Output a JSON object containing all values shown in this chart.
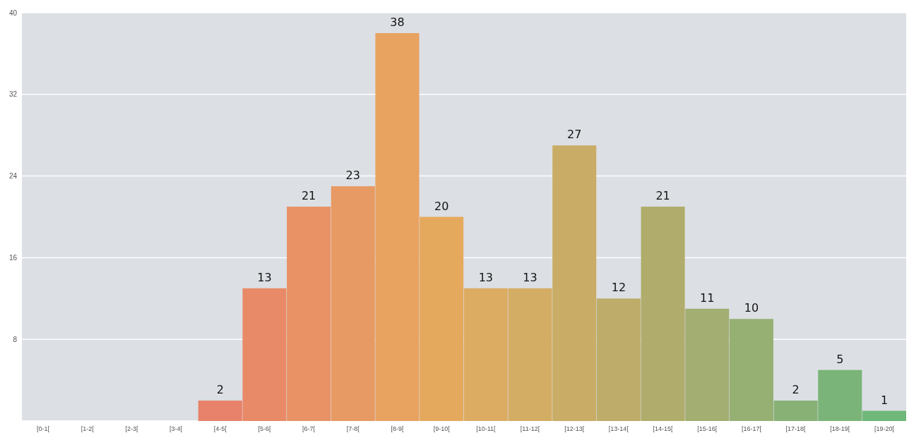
{
  "chart_data": {
    "type": "bar",
    "categories": [
      "[0-1[",
      "[1-2[",
      "[2-3[",
      "[3-4[",
      "[4-5[",
      "[5-6[",
      "[6-7[",
      "[7-8[",
      "[8-9[",
      "[9-10[",
      "[10-11[",
      "[11-12[",
      "[12-13[",
      "[13-14[",
      "[14-15[",
      "[15-16[",
      "[16-17[",
      "[17-18[",
      "[18-19[",
      "[19-20["
    ],
    "values": [
      0,
      0,
      0,
      0,
      2,
      13,
      21,
      23,
      38,
      20,
      13,
      13,
      27,
      12,
      21,
      11,
      10,
      2,
      5,
      1
    ],
    "colors": [
      "#e8786c",
      "#e87a6c",
      "#e87c6b",
      "#e87e6b",
      "#e8826a",
      "#e88a68",
      "#e89266",
      "#e89a64",
      "#e8a360",
      "#e5a95e",
      "#dcac62",
      "#d4ad64",
      "#c9ad66",
      "#bead6a",
      "#b0ad6c",
      "#a2ae72",
      "#96b074",
      "#88b176",
      "#7ab478",
      "#6fb87a"
    ],
    "ylim": [
      0,
      40
    ],
    "yticks": [
      8,
      16,
      24,
      32,
      40
    ],
    "grid": "y",
    "value_labels": [
      null,
      null,
      null,
      null,
      "2",
      "13",
      "21",
      "23",
      "38",
      "20",
      "13",
      "13",
      "27",
      "12",
      "21",
      "11",
      "10",
      "2",
      "5",
      "1"
    ]
  }
}
